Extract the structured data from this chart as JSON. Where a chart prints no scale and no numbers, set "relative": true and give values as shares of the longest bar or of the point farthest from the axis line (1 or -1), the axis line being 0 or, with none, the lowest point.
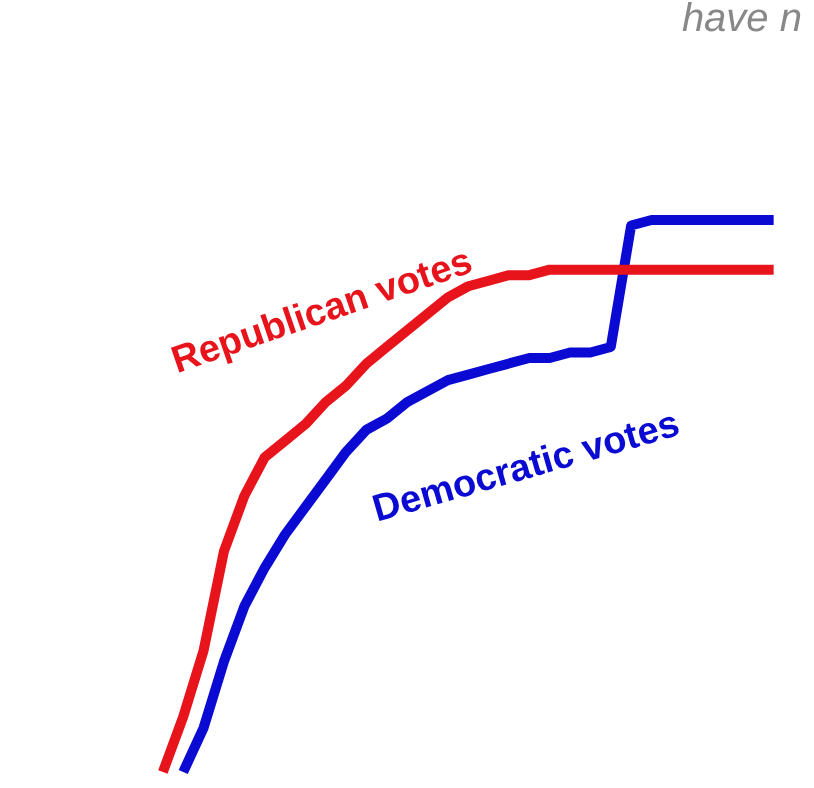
{
  "chart_data": {
    "type": "line",
    "relative": true,
    "annotations": [
      "have n"
    ],
    "categories": [
      null,
      null,
      null,
      null,
      null,
      null,
      null,
      null,
      null,
      null,
      null,
      null,
      null,
      null,
      null,
      null,
      null,
      null,
      null,
      null,
      null,
      null,
      null,
      null,
      null,
      null,
      null,
      null,
      null,
      null,
      null,
      null,
      null,
      null,
      null,
      null,
      null,
      null,
      null,
      null
    ],
    "series": [
      {
        "name": "Republican votes",
        "color": "#e8141c",
        "values": [
          null,
          null,
          null,
          null,
          null,
          null,
          null,
          null,
          0,
          0.1,
          0.22,
          0.4,
          0.5,
          0.57,
          0.6,
          0.63,
          0.67,
          0.7,
          0.74,
          0.77,
          0.8,
          0.83,
          0.86,
          0.88,
          0.89,
          0.9,
          0.9,
          0.91,
          0.91,
          0.91,
          0.91,
          0.91,
          0.91,
          0.91,
          0.91,
          0.91,
          0.91,
          0.91,
          0.91,
          null
        ]
      },
      {
        "name": "Democratic votes",
        "color": "#0a0ad2",
        "values": [
          null,
          null,
          null,
          null,
          null,
          null,
          null,
          null,
          null,
          0,
          0.08,
          0.2,
          0.3,
          0.37,
          0.43,
          0.48,
          0.53,
          0.58,
          0.62,
          0.64,
          0.67,
          0.69,
          0.71,
          0.72,
          0.73,
          0.74,
          0.75,
          0.75,
          0.76,
          0.76,
          0.77,
          0.99,
          1,
          1,
          1,
          1,
          1,
          1,
          1,
          null
        ]
      }
    ]
  }
}
